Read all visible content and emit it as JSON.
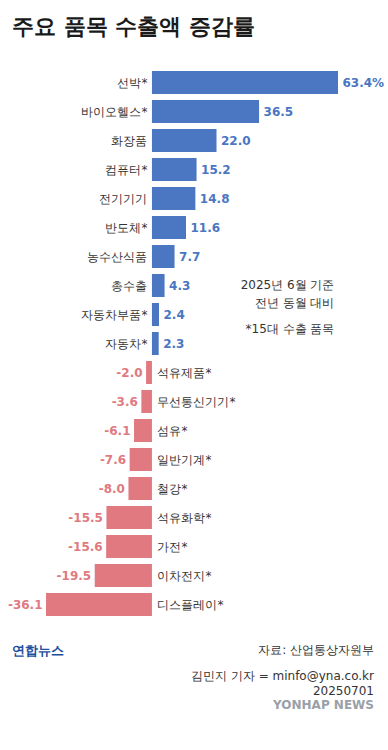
{
  "chart_data": {
    "type": "bar",
    "orientation": "horizontal",
    "title": "주요 품목 수출액 증감률",
    "categories": [
      "선박*",
      "바이오헬스*",
      "화장품",
      "컴퓨터*",
      "전기기기",
      "반도체*",
      "농수산식품",
      "총수출",
      "자동차부품*",
      "자동차*",
      "석유제품*",
      "무선통신기기*",
      "섬유*",
      "일반기계*",
      "철강*",
      "석유화학*",
      "가전*",
      "이차전지*",
      "디스플레이*"
    ],
    "values": [
      63.4,
      36.5,
      22.0,
      15.2,
      14.8,
      11.6,
      7.7,
      4.3,
      2.4,
      2.3,
      -2.0,
      -3.6,
      -6.1,
      -7.6,
      -8.0,
      -15.5,
      -15.6,
      -19.5,
      -36.1
    ],
    "value_labels": [
      "63.4%",
      "36.5",
      "22.0",
      "15.2",
      "14.8",
      "11.6",
      "7.7",
      "4.3",
      "2.4",
      "2.3",
      "-2.0",
      "-3.6",
      "-6.1",
      "-7.6",
      "-8.0",
      "-15.5",
      "-15.6",
      "-19.5",
      "-36.1"
    ],
    "colors": [
      "#4a76c2",
      "#4a76c2",
      "#4a76c2",
      "#4a76c2",
      "#4a76c2",
      "#4a76c2",
      "#4a76c2",
      "#4a76c2",
      "#4a76c2",
      "#4a76c2",
      "#e07a80",
      "#e07a80",
      "#e07a80",
      "#e07a80",
      "#e07a80",
      "#e07a80",
      "#e07a80",
      "#e07a80",
      "#e07a80"
    ],
    "data_labels": true,
    "tick_labels": false,
    "grid": false,
    "annotations": [
      "2025년 6월 기준",
      "전년 동월 대비",
      "*15대 수출 품목"
    ]
  },
  "footer": {
    "logo": "연합뉴스",
    "source": "자료: 산업통상자원부",
    "credit": "김민지 기자 = minfo@yna.co.kr",
    "date": "20250701",
    "watermark": "YONHAP NEWS"
  }
}
